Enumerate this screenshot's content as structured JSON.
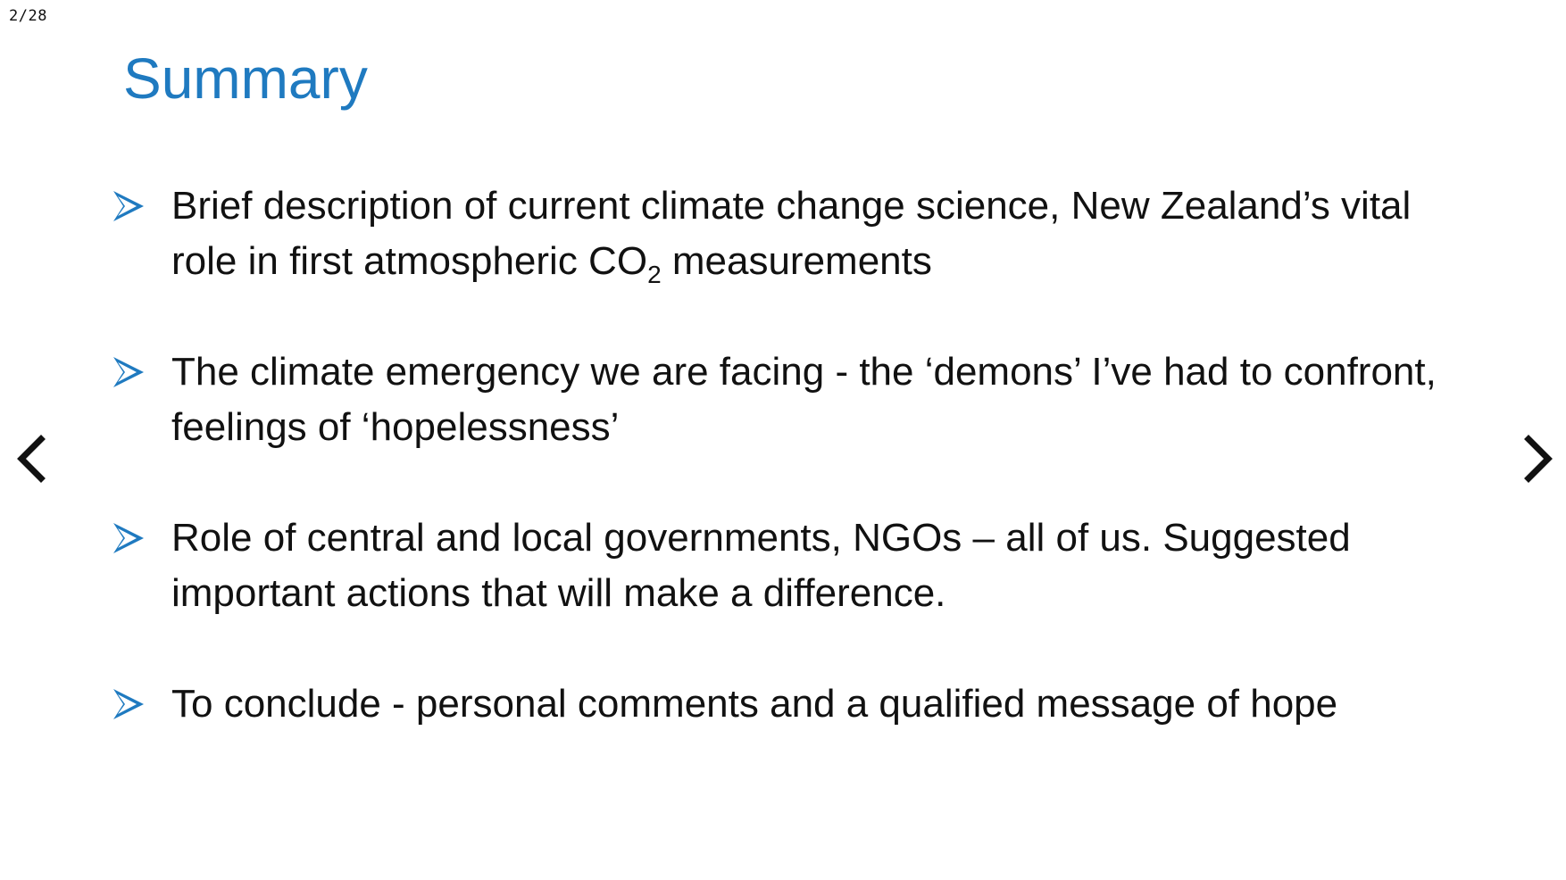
{
  "page_counter": "2/28",
  "slide": {
    "title": "Summary",
    "bullets": [
      {
        "text_before": "Brief description of current climate change science, New Zealand’s vital role in first atmospheric CO",
        "subscript": "2",
        "text_after": " measurements"
      },
      {
        "text": "The climate emergency we are facing - the ‘demons’ I’ve had to confront, feelings of ‘hopelessness’"
      },
      {
        "text": "Role of central and local governments, NGOs – all of us. Suggested important actions that will make a difference."
      },
      {
        "text": "To conclude - personal comments and a qualified message of hope"
      }
    ]
  },
  "navigation": {
    "prev_icon": "chevron-left-icon",
    "next_icon": "chevron-right-icon"
  },
  "colors": {
    "title": "#1f7ac0",
    "bullet_arrow": "#1f7ac0",
    "body_text": "#111111",
    "background": "#ffffff"
  }
}
